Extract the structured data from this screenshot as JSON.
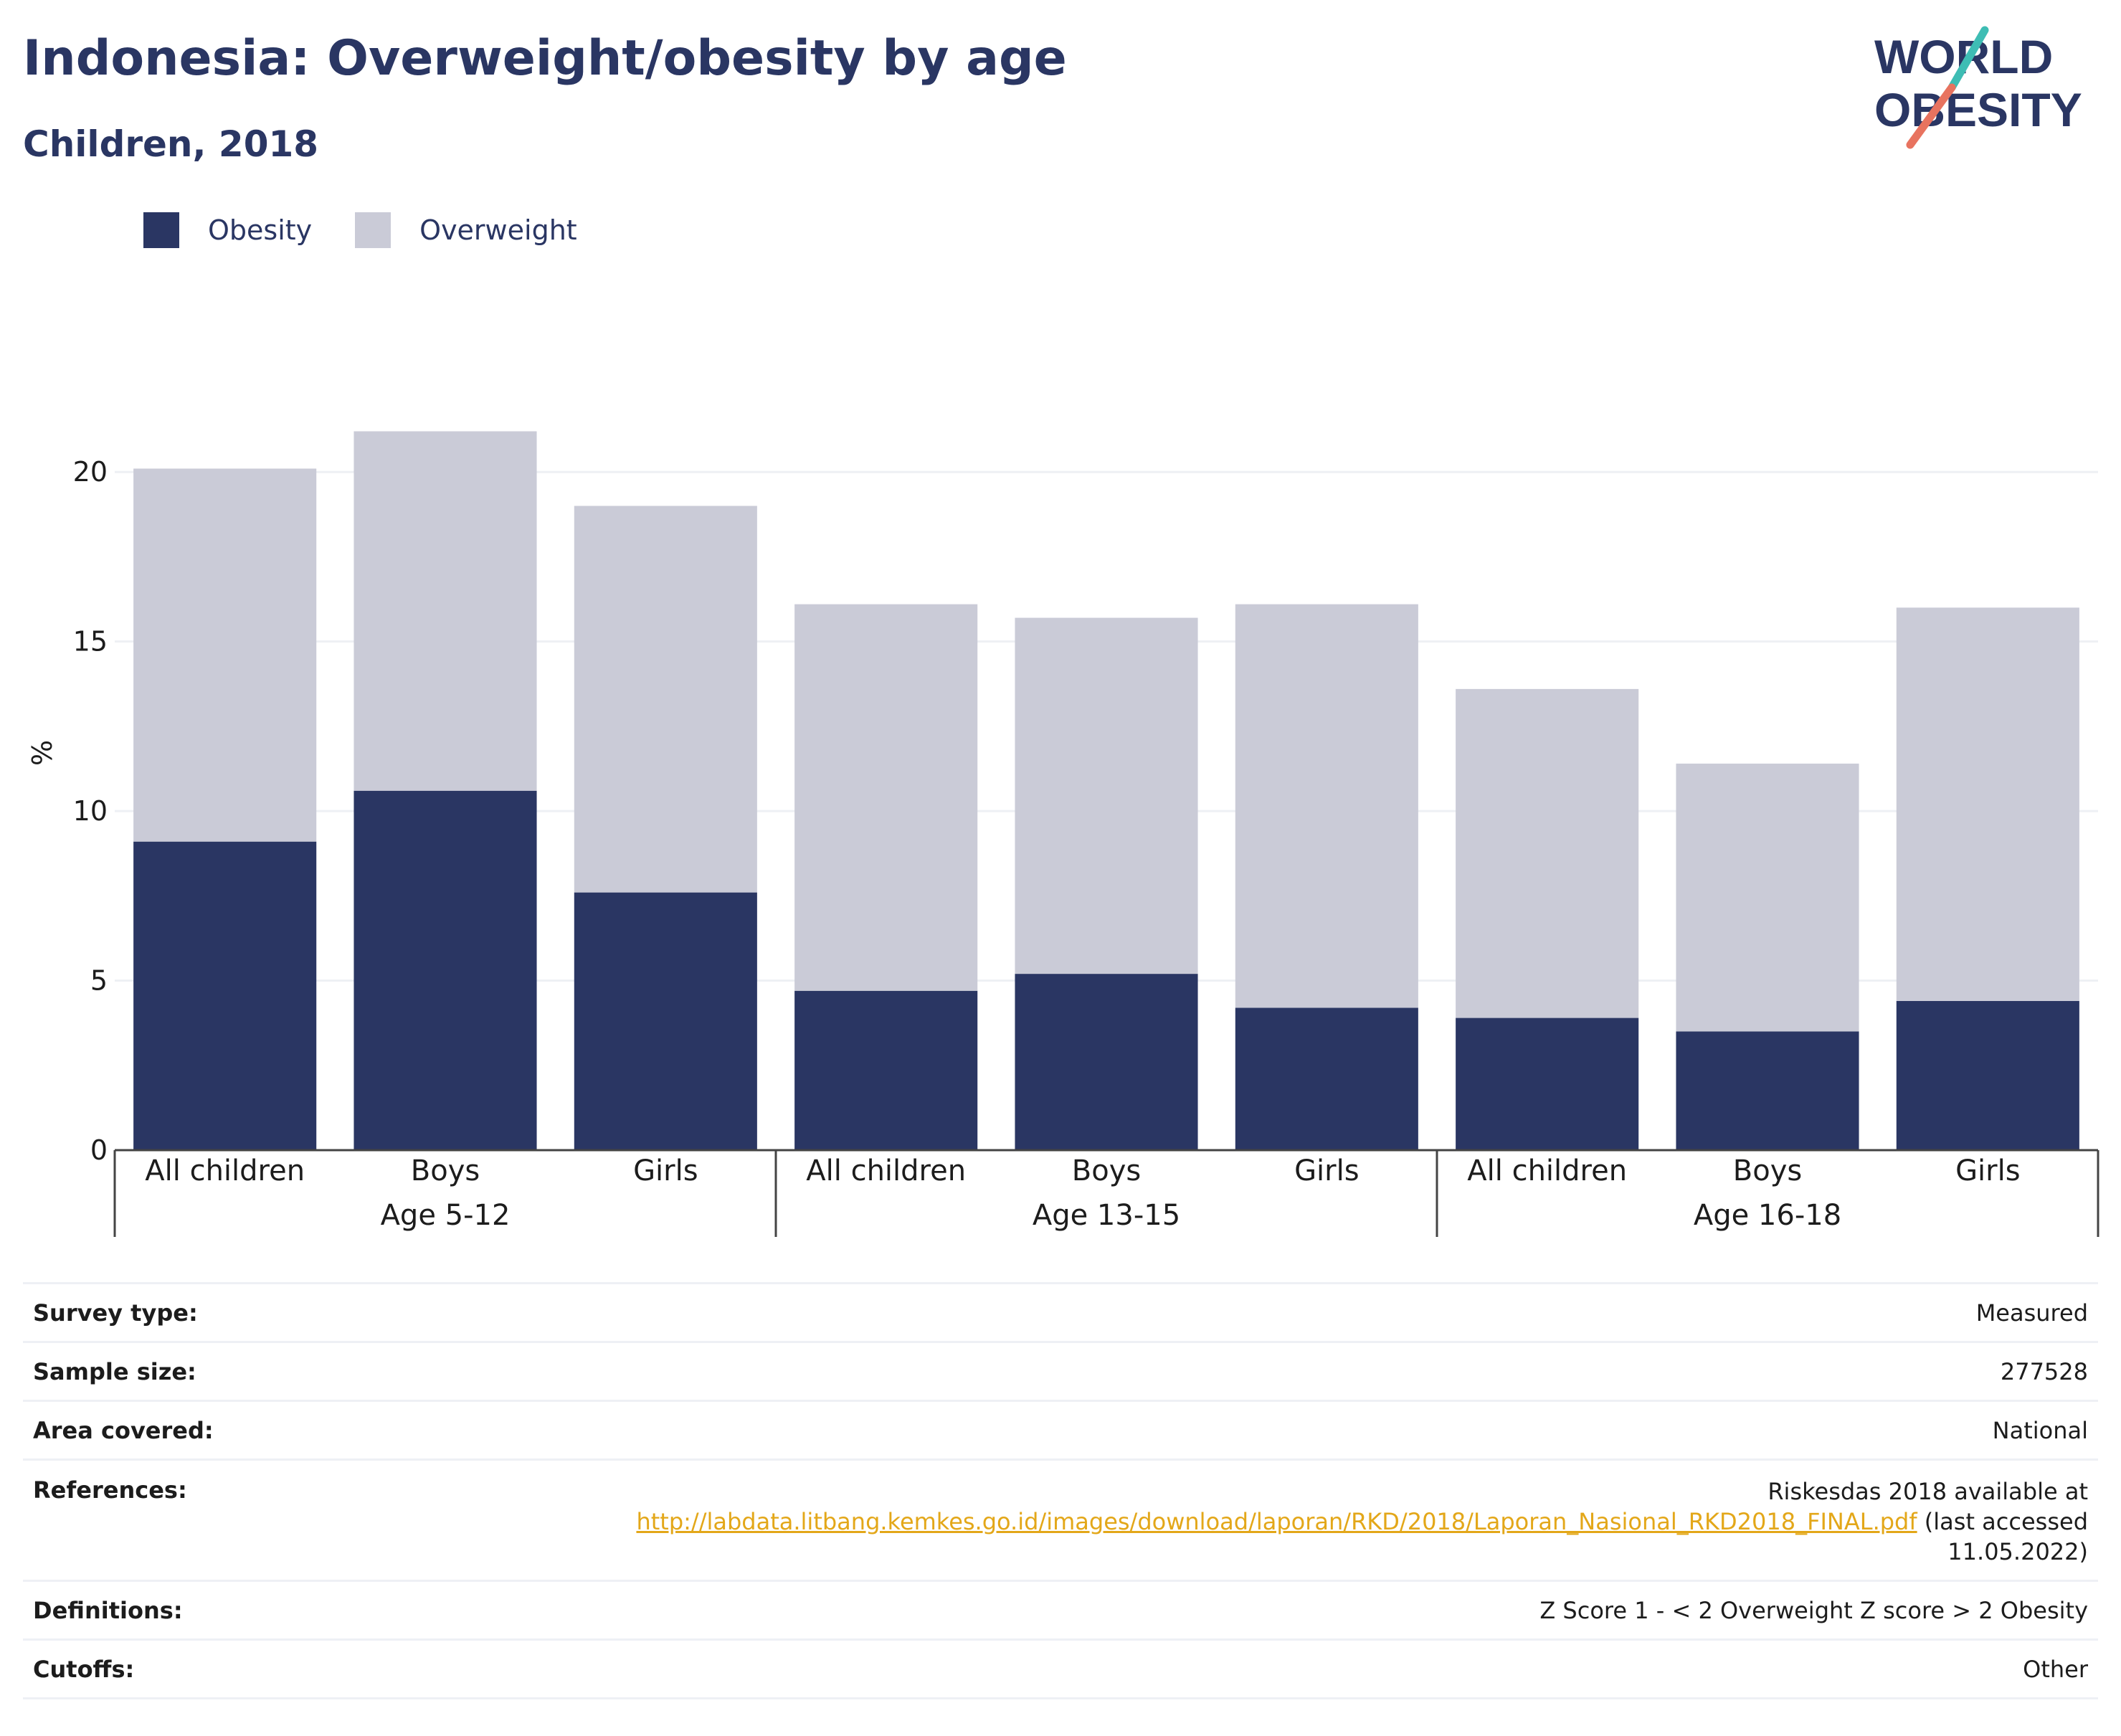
{
  "title": "Indonesia: Overweight/obesity by age",
  "subtitle": "Children, 2018",
  "logo": {
    "line1": "WORLD",
    "line2": "OBESITY",
    "icon": "world-obesity-logo"
  },
  "colors": {
    "obesity": "#2a3663",
    "overweight": "#cacbd7",
    "accent_teal": "#3ebdb4",
    "accent_coral": "#e8735f",
    "link": "#e3a719",
    "grid": "#eef0f4"
  },
  "chart_data": {
    "type": "bar",
    "stacked": true,
    "ylabel": "%",
    "ylim": [
      0,
      22.5
    ],
    "yticks": [
      0,
      5,
      10,
      15,
      20
    ],
    "grid": true,
    "legend_position": "top-left",
    "categories": [
      "All children",
      "Boys",
      "Girls",
      "All children",
      "Boys",
      "Girls",
      "All children",
      "Boys",
      "Girls"
    ],
    "groups": [
      {
        "label": "Age 5-12",
        "start": 0,
        "count": 3
      },
      {
        "label": "Age 13-15",
        "start": 3,
        "count": 3
      },
      {
        "label": "Age 16-18",
        "start": 6,
        "count": 3
      }
    ],
    "series": [
      {
        "name": "Obesity",
        "color": "#2a3663",
        "values": [
          9.1,
          10.6,
          7.6,
          4.7,
          5.2,
          4.2,
          3.9,
          3.5,
          4.4
        ]
      },
      {
        "name": "Overweight",
        "color": "#cacbd7",
        "values": [
          11.0,
          10.6,
          11.4,
          11.4,
          10.5,
          11.9,
          9.7,
          7.9,
          11.6
        ]
      }
    ]
  },
  "info": {
    "survey_type": {
      "label": "Survey type:",
      "value": "Measured"
    },
    "sample_size": {
      "label": "Sample size:",
      "value": "277528"
    },
    "area_covered": {
      "label": "Area covered:",
      "value": "National"
    },
    "references": {
      "label": "References:",
      "line1": "Riskesdas 2018 available at",
      "url": "http://labdata.litbang.kemkes.go.id/images/download/laporan/RKD/2018/Laporan_Nasional_RKD2018_FINAL.pdf",
      "after_url": " (last accessed",
      "date": "11.05.2022)"
    },
    "definitions": {
      "label": "Definitions:",
      "value": "Z Score 1 - < 2 Overweight Z score > 2 Obesity"
    },
    "cutoffs": {
      "label": "Cutoffs:",
      "value": "Other"
    }
  }
}
